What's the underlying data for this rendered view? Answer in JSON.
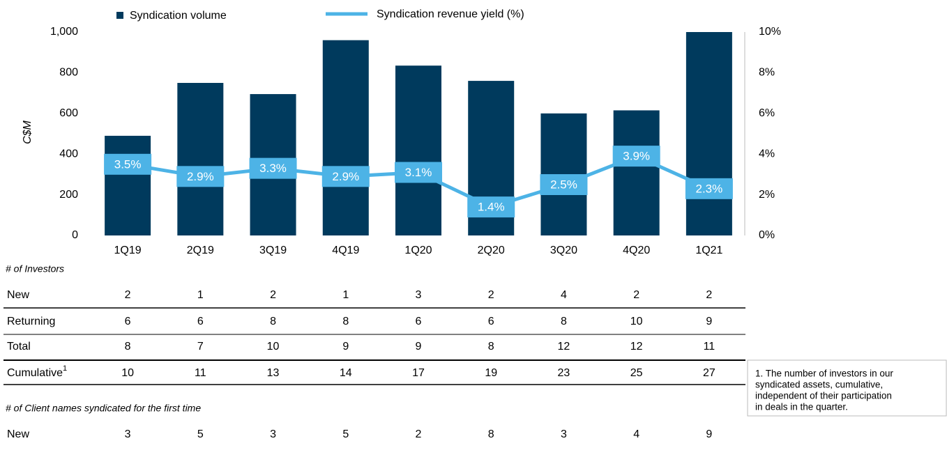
{
  "chart_data": {
    "type": "bar",
    "y_label": "C$M",
    "categories": [
      "1Q19",
      "2Q19",
      "3Q19",
      "4Q19",
      "1Q20",
      "2Q20",
      "3Q20",
      "4Q20",
      "1Q21"
    ],
    "ylim": [
      0,
      1000
    ],
    "yticks": [
      0,
      200,
      400,
      600,
      800,
      {
        "value": 1000,
        "label": "1,000"
      }
    ],
    "y2lim": [
      0,
      10
    ],
    "y2ticks": [
      {
        "value": 0,
        "label": "0%"
      },
      {
        "value": 2,
        "label": "2%"
      },
      {
        "value": 4,
        "label": "4%"
      },
      {
        "value": 6,
        "label": "6%"
      },
      {
        "value": 8,
        "label": "8%"
      },
      {
        "value": 10,
        "label": "10%"
      }
    ],
    "series": [
      {
        "name": "Syndication volume",
        "type": "bar",
        "color": "#003a5d",
        "values": [
          490,
          750,
          695,
          960,
          835,
          760,
          600,
          615,
          1000
        ]
      },
      {
        "name": "Syndication revenue yield (%)",
        "type": "line",
        "axis": "y2",
        "color": "#4db3e6",
        "values": [
          3.5,
          2.9,
          3.3,
          2.9,
          3.1,
          1.4,
          2.5,
          3.9,
          2.3
        ],
        "value_labels": [
          "3.5%",
          "2.9%",
          "3.3%",
          "2.9%",
          "3.1%",
          "1.4%",
          "2.5%",
          "3.9%",
          "2.3%"
        ]
      }
    ]
  },
  "investors": {
    "title": "# of Investors",
    "rows": [
      {
        "label": "New",
        "values": [
          2,
          1,
          2,
          1,
          3,
          2,
          4,
          2,
          2
        ]
      },
      {
        "label": "Returning",
        "values": [
          6,
          6,
          8,
          8,
          6,
          6,
          8,
          10,
          9
        ]
      },
      {
        "label": "Total",
        "values": [
          8,
          7,
          10,
          9,
          9,
          8,
          12,
          12,
          11
        ]
      },
      {
        "label": "Cumulative",
        "marker": "1",
        "values": [
          10,
          11,
          13,
          14,
          17,
          19,
          23,
          25,
          27
        ]
      }
    ]
  },
  "clients": {
    "title": "# of Client names syndicated for the first time",
    "rows": [
      {
        "label": "New",
        "values": [
          3,
          5,
          3,
          5,
          2,
          8,
          3,
          4,
          9
        ]
      }
    ]
  },
  "footnote": [
    "1. The number of investors in our",
    "syndicated assets, cumulative,",
    "independent of their participation",
    "in deals in the quarter."
  ]
}
